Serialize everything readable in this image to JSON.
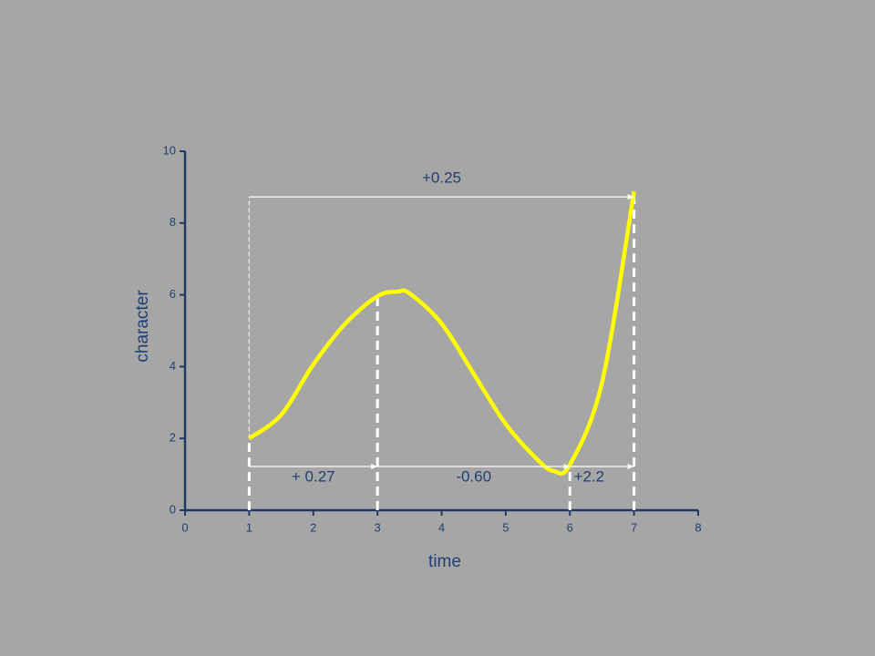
{
  "chart_data": {
    "type": "line",
    "x_label": "time",
    "y_label": "character",
    "series": [
      {
        "name": "character",
        "color": "#ffff00",
        "x": [
          1,
          1.5,
          2,
          2.5,
          3,
          3.32,
          3.5,
          4,
          4.5,
          5,
          5.5,
          5.75,
          6,
          6.5,
          7
        ],
        "values": [
          2.0,
          2.66,
          4.06,
          5.2,
          5.96,
          6.09,
          6.04,
          5.2,
          3.8,
          2.4,
          1.4,
          1.09,
          1.27,
          3.55,
          8.88
        ]
      }
    ],
    "xlim": [
      0,
      8
    ],
    "xticks": [
      0,
      1,
      2,
      3,
      4,
      5,
      6,
      7,
      8
    ],
    "ylim": [
      0,
      10
    ],
    "yticks": [
      0,
      2,
      4,
      6,
      8,
      10
    ],
    "annotations": {
      "overall": "+0.25",
      "segments": [
        "+ 0.27",
        "-0.60",
        "+2.2"
      ]
    }
  }
}
